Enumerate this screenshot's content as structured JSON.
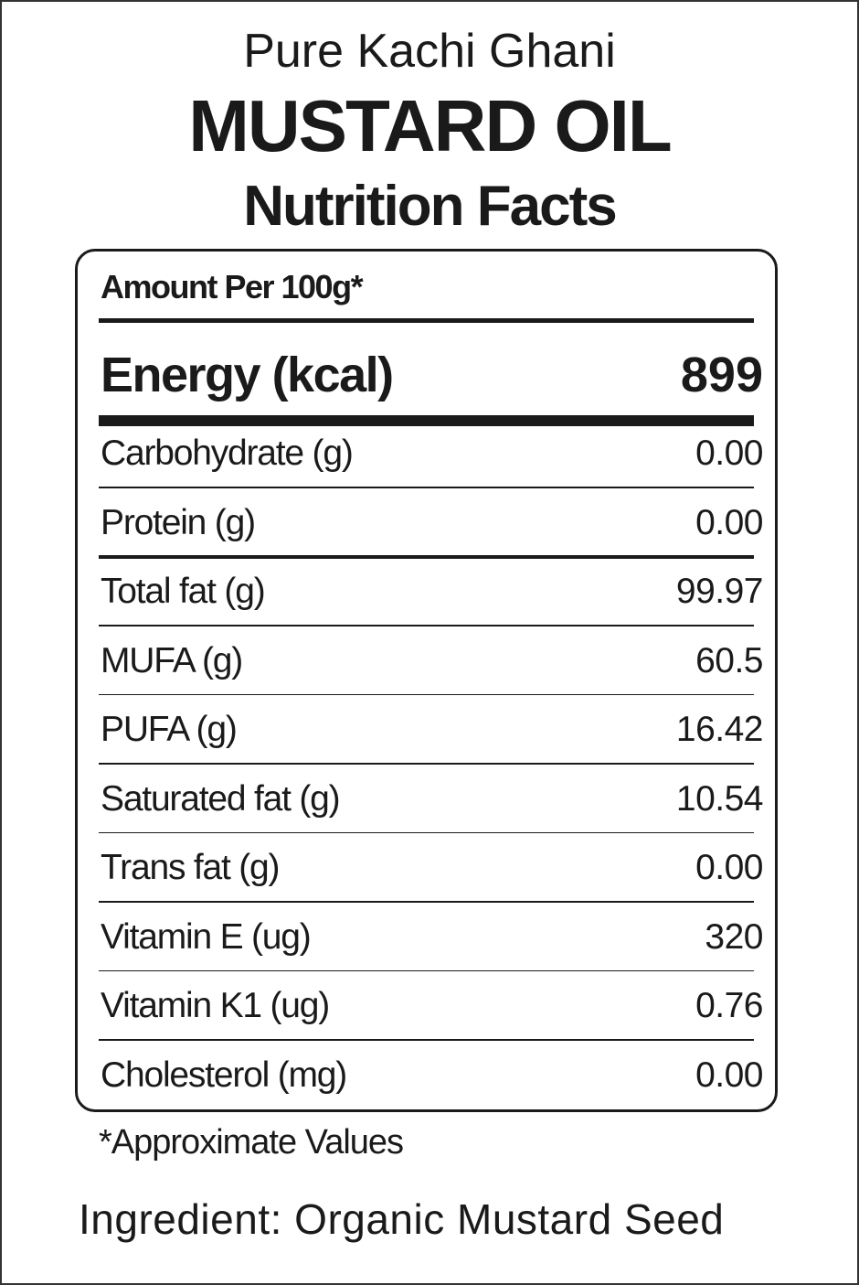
{
  "header": {
    "subtitle": "Pure Kachi Ghani",
    "title": "MUSTARD OIL",
    "heading": "Nutrition Facts"
  },
  "table": {
    "serving": "Amount Per 100g*",
    "energy": {
      "label": "Energy (kcal)",
      "value": "899"
    },
    "rows": [
      [
        "Carbohydrate (g)",
        "0.00"
      ],
      [
        "Protein (g)",
        "0.00"
      ],
      [
        "Total fat (g)",
        "99.97"
      ],
      [
        "MUFA (g)",
        "60.5"
      ],
      [
        "PUFA (g)",
        "16.42"
      ],
      [
        "Saturated fat (g)",
        "10.54"
      ],
      [
        "Trans fat (g)",
        "0.00"
      ],
      [
        "Vitamin E (ug)",
        "320"
      ],
      [
        "Vitamin K1 (ug)",
        "0.76"
      ],
      [
        "Cholesterol (mg)",
        "0.00"
      ]
    ]
  },
  "footnote": "*Approximate Values",
  "ingredient": "Ingredient: Organic Mustard Seed"
}
